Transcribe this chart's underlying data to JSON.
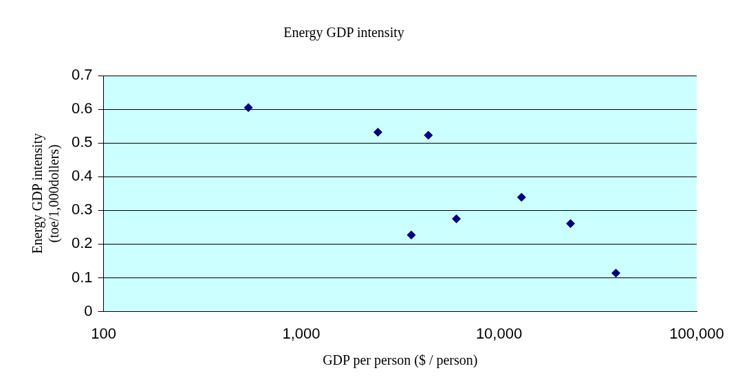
{
  "chart_data": {
    "type": "scatter",
    "title": "Energy GDP intensity",
    "xlabel": "GDP per person ($ / person)",
    "ylabel": "Energy GDP intensity\n(toe/1,000dollers)",
    "x": [
      540,
      2440,
      4390,
      3600,
      6090,
      13000,
      23000,
      39000
    ],
    "values": [
      0.605,
      0.532,
      0.523,
      0.227,
      0.275,
      0.339,
      0.261,
      0.114
    ],
    "color": "#000080",
    "marker": "diamond",
    "log": "x",
    "grid": "y",
    "legend": false,
    "xlim": [
      100,
      100000
    ],
    "xticks": [
      {
        "value": 100,
        "label": "100"
      },
      {
        "value": 1000,
        "label": "1,000"
      },
      {
        "value": 10000,
        "label": "10,000"
      },
      {
        "value": 100000,
        "label": "100,000"
      }
    ],
    "ylim": [
      0,
      0.7
    ],
    "yticks": [
      0,
      0.1,
      0.2,
      0.3,
      0.4,
      0.5,
      0.6,
      0.7
    ]
  }
}
